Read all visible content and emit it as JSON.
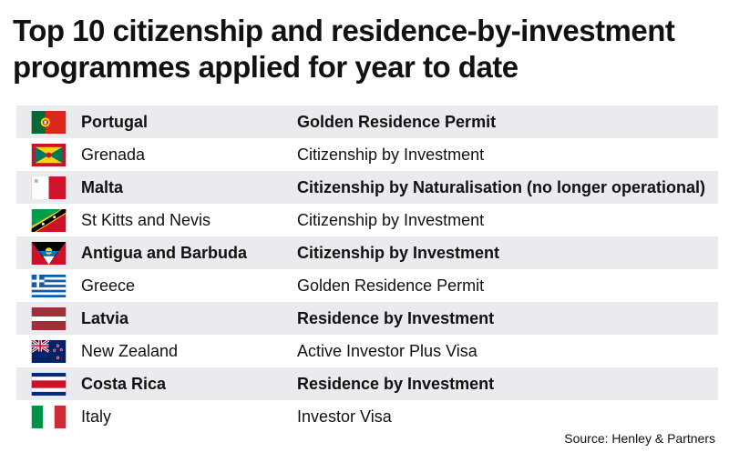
{
  "title": "Top 10 citizenship and residence-by-investment programmes applied for year to date",
  "rows": [
    {
      "flag": "portugal-flag-icon",
      "country": "Portugal",
      "programme": "Golden Residence Permit"
    },
    {
      "flag": "grenada-flag-icon",
      "country": "Grenada",
      "programme": "Citizenship by Investment"
    },
    {
      "flag": "malta-flag-icon",
      "country": "Malta",
      "programme": "Citizenship by Naturalisation (no longer operational)"
    },
    {
      "flag": "st-kitts-and-nevis-flag-icon",
      "country": "St Kitts and Nevis",
      "programme": "Citizenship by Investment"
    },
    {
      "flag": "antigua-and-barbuda-flag-icon",
      "country": "Antigua and Barbuda",
      "programme": "Citizenship by Investment"
    },
    {
      "flag": "greece-flag-icon",
      "country": "Greece",
      "programme": "Golden Residence Permit"
    },
    {
      "flag": "latvia-flag-icon",
      "country": "Latvia",
      "programme": "Residence by Investment"
    },
    {
      "flag": "new-zealand-flag-icon",
      "country": "New Zealand",
      "programme": "Active Investor Plus Visa"
    },
    {
      "flag": "costa-rica-flag-icon",
      "country": "Costa Rica",
      "programme": "Residence by Investment"
    },
    {
      "flag": "italy-flag-icon",
      "country": "Italy",
      "programme": "Investor Visa"
    }
  ],
  "source": "Source: Henley & Partners",
  "colors": {
    "row_shade": "#e9ebee",
    "text": "#111111"
  }
}
